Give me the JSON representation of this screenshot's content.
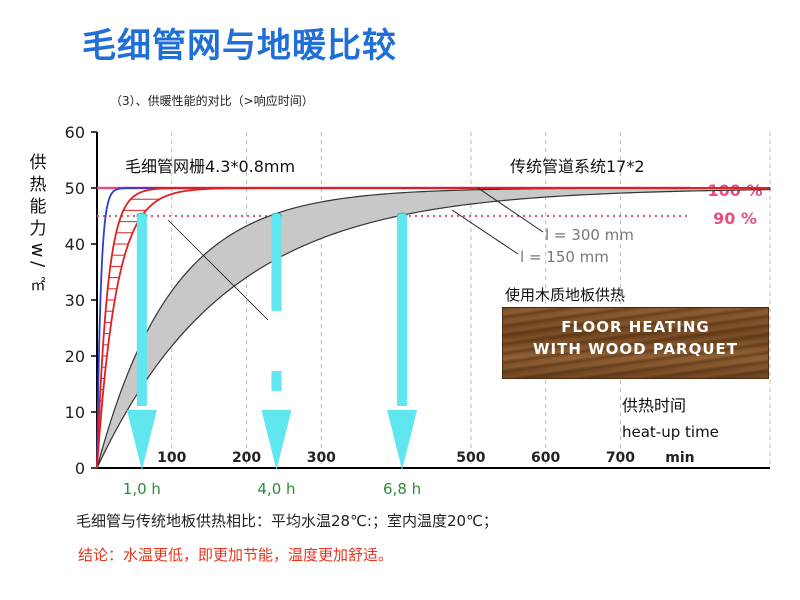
{
  "page": {
    "title": "毛细管网与地暖比较",
    "subtitle": "（3）、供暖性能的对比（>响应时间）",
    "note_comparison": "毛细管与传统地板供热相比：平均水温28℃:；室内温度20℃；",
    "note_conclusion": "结论：水温更低，即更加节能，温度更加舒适。",
    "wood_label": "使用木质地板供热",
    "wood_text_line1": "FLOOR HEATING",
    "wood_text_line2": "WITH WOOD PARQUET"
  },
  "chart_data": {
    "type": "line",
    "ylabel": "供热能力w/㎡",
    "xlabel_cn": "供热时间",
    "xlabel_en": "heat-up time",
    "x_unit": "min",
    "ylim": [
      0,
      60
    ],
    "xlim": [
      0,
      900
    ],
    "y_ticks": [
      0,
      10,
      20,
      30,
      40,
      50,
      60
    ],
    "x_ticks": [
      100,
      200,
      300,
      500,
      600,
      700
    ],
    "grid": "vertical-dashed",
    "series_labels": {
      "capillary": "毛细管网栅4.3*0.8mm",
      "traditional": "传统管道系统17*2",
      "l300": "l = 300 mm",
      "l150": "l = 150 mm"
    },
    "reference_lines": [
      {
        "label": "100 %",
        "value": 50,
        "style": "solid",
        "color": "#e94f7c"
      },
      {
        "label": "90 %",
        "value": 45,
        "style": "dotted",
        "color": "#e94f7c"
      }
    ],
    "response_times": [
      {
        "label": "1,0 h",
        "minutes": 60
      },
      {
        "label": "4,0 h",
        "minutes": 240
      },
      {
        "label": "6,8 h",
        "minutes": 408
      }
    ],
    "capillary_curves": [
      {
        "color": "#2b3fd1",
        "tau": 5
      },
      {
        "color": "#e02020",
        "tau": 14
      },
      {
        "color": "#e02020",
        "tau": 26
      }
    ],
    "traditional_band": {
      "tau_fast": 100,
      "tau_slow": 175,
      "max": 50
    }
  },
  "colors": {
    "title": "#1f6fd6",
    "conclusion": "#e8341c",
    "arrow": "#5fe6ee",
    "axis": "#000000",
    "band_fill": "#c8c8c8"
  }
}
